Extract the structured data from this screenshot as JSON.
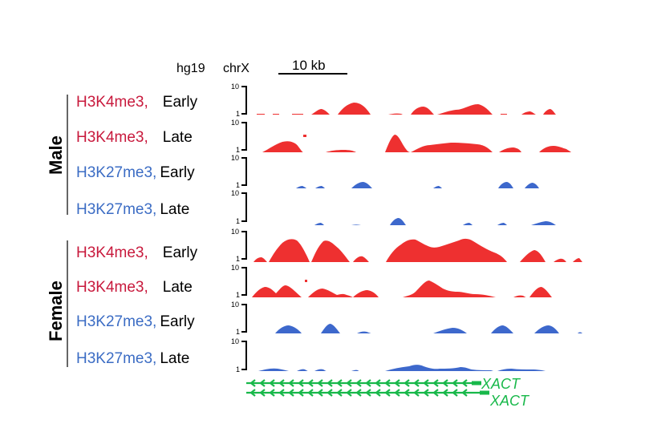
{
  "header": {
    "genome": "hg19",
    "chrom": "chrX",
    "scale": "10 kb"
  },
  "groups": [
    {
      "name": "Male",
      "tracks": [
        {
          "mark": "H3K4me3,",
          "time": "Early",
          "type": "K4"
        },
        {
          "mark": "H3K4me3,",
          "time": "Late",
          "type": "K4"
        },
        {
          "mark": "H3K27me3,",
          "time": "Early",
          "type": "K27"
        },
        {
          "mark": "H3K27me3,",
          "time": "Late",
          "type": "K27"
        }
      ]
    },
    {
      "name": "Female",
      "tracks": [
        {
          "mark": "H3K4me3,",
          "time": "Early",
          "type": "K4"
        },
        {
          "mark": "H3K4me3,",
          "time": "Late",
          "type": "K4"
        },
        {
          "mark": "H3K27me3,",
          "time": "Early",
          "type": "K27"
        },
        {
          "mark": "H3K27me3,",
          "time": "Late",
          "type": "K27"
        }
      ]
    }
  ],
  "axis": {
    "max": "10",
    "min": "1"
  },
  "gene": {
    "name1": "XACT",
    "name2": "XACT"
  },
  "colors": {
    "k4": "#ee3030",
    "k27": "#3d68cc",
    "gene": "#18b84a",
    "k4_label": "#c8193c",
    "k27_label": "#3b6cc4"
  }
}
